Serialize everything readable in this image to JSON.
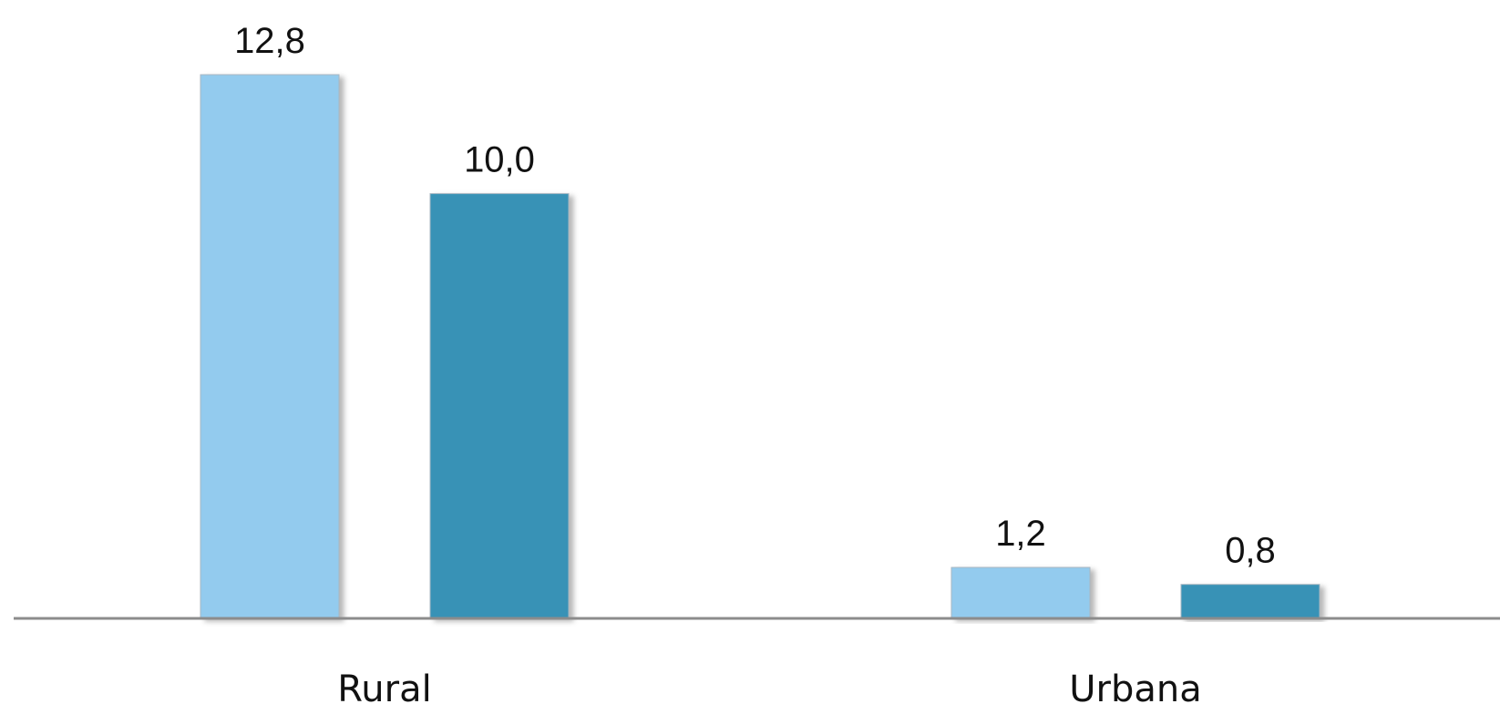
{
  "chart_data": {
    "type": "bar",
    "categories": [
      "Rural",
      "Urbana"
    ],
    "series": [
      {
        "values": [
          12.8,
          1.2
        ],
        "labels": [
          "12,8",
          "1,2"
        ],
        "color": "#93cbee"
      },
      {
        "values": [
          10.0,
          0.8
        ],
        "labels": [
          "10,0",
          "0,8"
        ],
        "color": "#3892b6"
      }
    ],
    "ylim": [
      0,
      12.8
    ],
    "grid": false,
    "legend": "none",
    "axis_color": "#8c8c8c"
  }
}
